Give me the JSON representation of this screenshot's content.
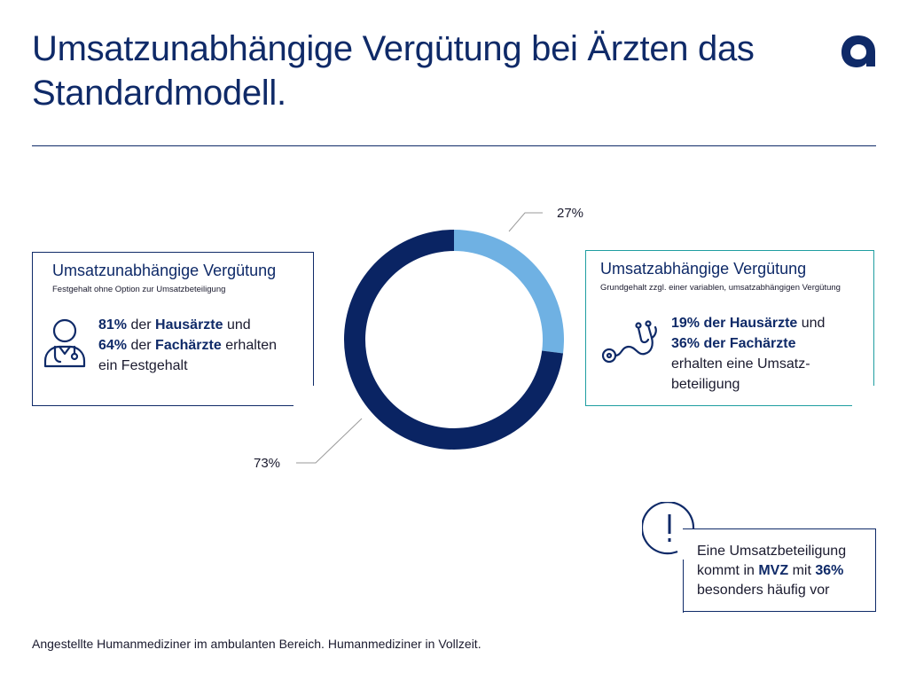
{
  "title": {
    "line1": "Umsatzunabhängige Vergütung bei Ärzten das",
    "line2": "Standardmodell."
  },
  "icons": {
    "logo": "apo-bank-logo",
    "doctor": "doctor-with-stethoscope-icon",
    "stethoscope": "stethoscope-icon",
    "alert": "exclamation-icon"
  },
  "colors": {
    "dark_navy": "#0f2a68",
    "donut_dark": "#0a2463",
    "donut_light": "#6fb1e3",
    "teal": "#1f9ea1"
  },
  "chart_data": {
    "type": "pie",
    "style": "donut",
    "slices": [
      {
        "label": "27%",
        "value": 27,
        "color": "#6fb1e3"
      },
      {
        "label": "73%",
        "value": 73,
        "color": "#0a2463"
      }
    ]
  },
  "left_box": {
    "heading": "Umsatzunabhängige Vergütung",
    "subheading": "Festgehalt ohne Option zur Umsatzbeteiligung",
    "line1_bold": "81%",
    "line1_rest": " der ",
    "line1_bold2": "Hausärzte",
    "line1_end": " und",
    "line2_bold": "64%",
    "line2_rest": " der ",
    "line2_bold2": "Fachärzte",
    "line2_end": " erhalten",
    "line3": "ein Festgehalt"
  },
  "right_box": {
    "heading": "Umsatzabhängige Vergütung",
    "subheading": "Grundgehalt zzgl. einer variablen, umsatzabhängigen Vergütung",
    "line1_bold": "19% der Hausärzte",
    "line1_end": " und",
    "line2_bold": "36% der Fachärzte",
    "line3": "erhalten eine Umsatz-",
    "line4": "beteiligung"
  },
  "note": {
    "line1": "Eine Umsatzbeteiligung",
    "line2_start": "kommt in ",
    "line2_bold": "MVZ",
    "line2_mid": " mit ",
    "line2_bold2": "36%",
    "line3": "besonders häufig vor"
  },
  "footnote": "Angestellte Humanmediziner im ambulanten Bereich. Humanmediziner in Vollzeit."
}
